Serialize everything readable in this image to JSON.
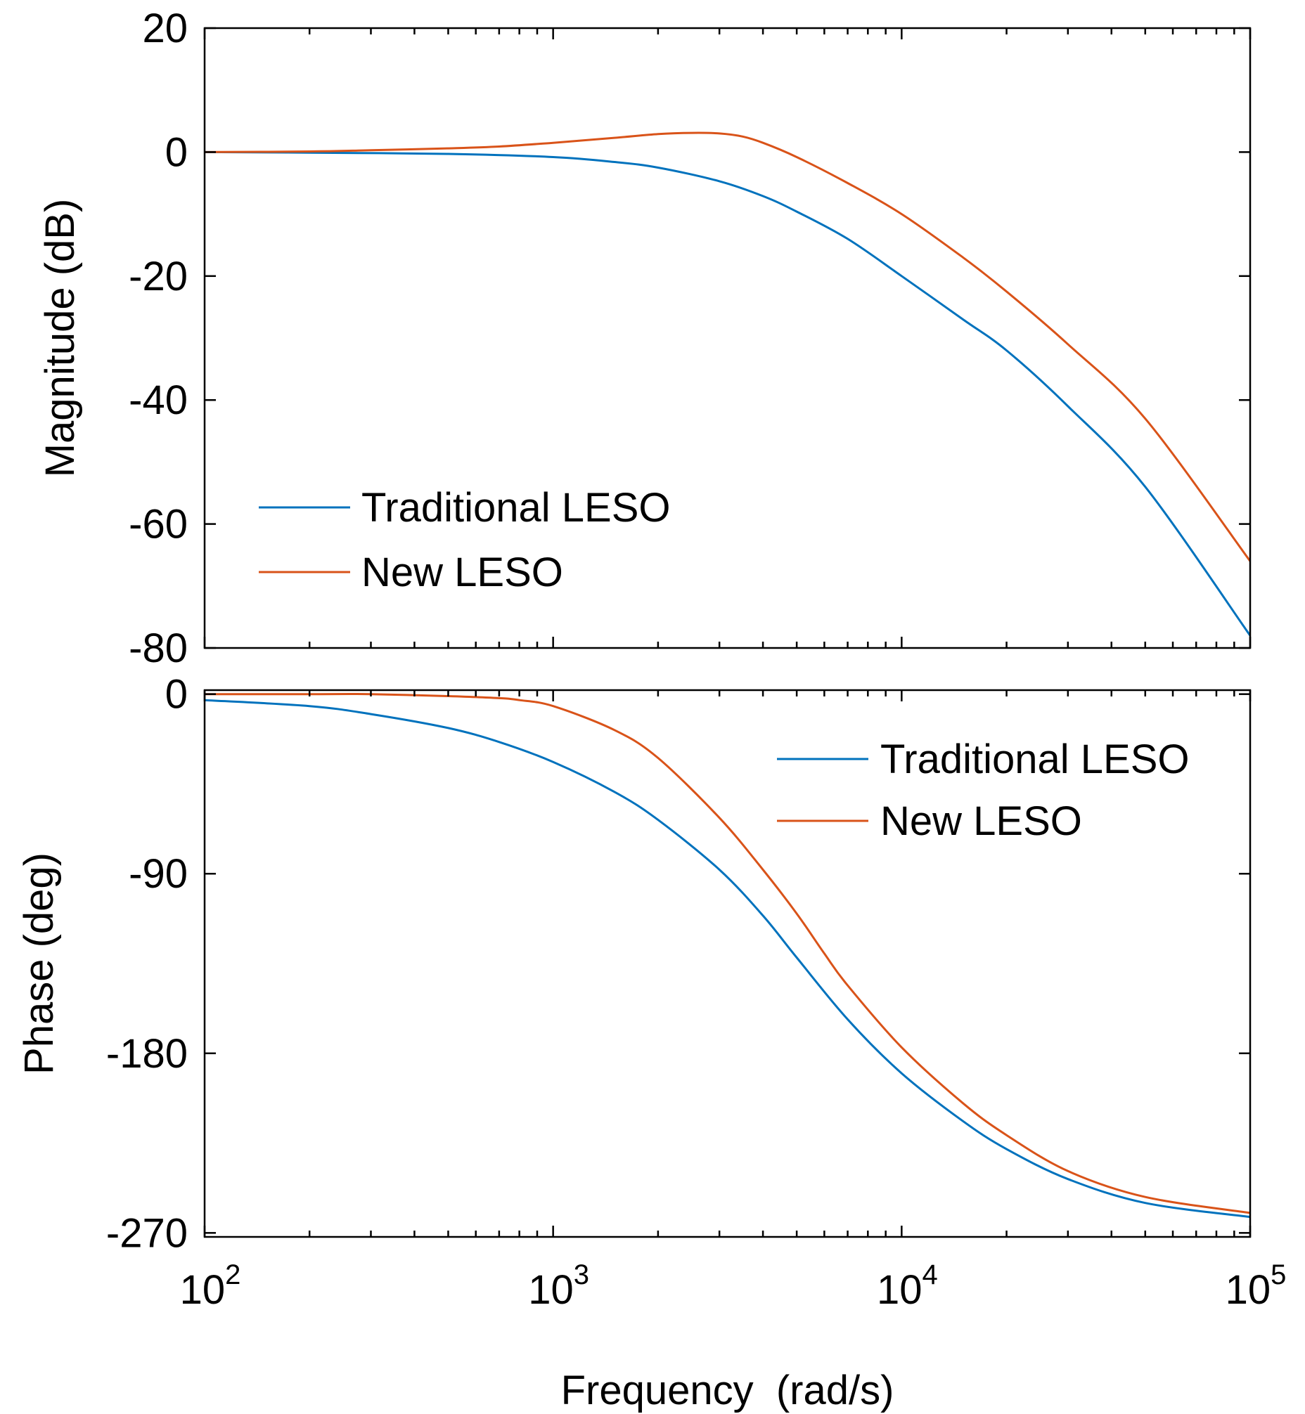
{
  "chart_data": [
    {
      "type": "line",
      "panel": "magnitude",
      "title": "",
      "xlabel": "",
      "ylabel": "Magnitude (dB)",
      "xscale": "log",
      "xlim": [
        100,
        100000
      ],
      "ylim": [
        -80,
        20
      ],
      "yticks": [
        20,
        0,
        -20,
        -40,
        -60,
        -80
      ],
      "ytick_labels": [
        "20",
        "0",
        "-20",
        "-40",
        "-60",
        "-80"
      ],
      "legend_position": "lower-left",
      "series": [
        {
          "name": "Traditional LESO",
          "color": "#0072BD",
          "x": [
            100,
            200,
            500,
            1000,
            1500,
            2000,
            3000,
            4000,
            5000,
            7000,
            10000,
            15000,
            20000,
            30000,
            50000,
            100000
          ],
          "y": [
            0,
            -0.1,
            -0.3,
            -0.8,
            -1.6,
            -2.5,
            -4.7,
            -7.1,
            -9.6,
            -14,
            -20,
            -27,
            -32,
            -41,
            -54,
            -78
          ]
        },
        {
          "name": "New LESO",
          "color": "#D95319",
          "x": [
            100,
            200,
            300,
            500,
            700,
            1000,
            1500,
            2000,
            2500,
            3000,
            3500,
            4000,
            5000,
            7000,
            10000,
            15000,
            20000,
            30000,
            50000,
            100000
          ],
          "y": [
            0,
            0.1,
            0.3,
            0.6,
            0.9,
            1.5,
            2.3,
            2.9,
            3.1,
            3.0,
            2.5,
            1.5,
            -0.8,
            -5,
            -10,
            -17,
            -22.5,
            -31,
            -43,
            -66
          ]
        }
      ]
    },
    {
      "type": "line",
      "panel": "phase",
      "title": "",
      "xlabel": "Frequency  (rad/s)",
      "ylabel": "Phase (deg)",
      "xscale": "log",
      "xlim": [
        100,
        100000
      ],
      "ylim": [
        -272,
        2
      ],
      "yticks": [
        0,
        -90,
        -180,
        -270
      ],
      "ytick_labels": [
        "0",
        "-90",
        "-180",
        "-270"
      ],
      "xtick_labels": [
        {
          "base": "10",
          "exp": "2",
          "value": 100
        },
        {
          "base": "10",
          "exp": "3",
          "value": 1000
        },
        {
          "base": "10",
          "exp": "4",
          "value": 10000
        },
        {
          "base": "10",
          "exp": "5",
          "value": 100000
        }
      ],
      "legend_position": "upper-right",
      "series": [
        {
          "name": "Traditional LESO",
          "color": "#0072BD",
          "x": [
            100,
            200,
            300,
            500,
            700,
            1000,
            1500,
            2000,
            3000,
            4000,
            5000,
            7000,
            10000,
            15000,
            20000,
            30000,
            50000,
            100000
          ],
          "y": [
            -3,
            -6,
            -10,
            -17,
            -24,
            -34,
            -49,
            -63,
            -88,
            -111,
            -132,
            -163,
            -190,
            -214,
            -228,
            -243,
            -255,
            -262
          ]
        },
        {
          "name": "New LESO",
          "color": "#D95319",
          "x": [
            100,
            200,
            300,
            500,
            700,
            800,
            1000,
            1500,
            2000,
            3000,
            4000,
            5000,
            6000,
            7000,
            10000,
            15000,
            20000,
            30000,
            50000,
            100000
          ],
          "y": [
            0,
            0,
            0,
            -1,
            -2,
            -3,
            -6,
            -18,
            -32,
            -62,
            -88,
            -110,
            -130,
            -146,
            -177,
            -205,
            -221,
            -239,
            -252,
            -260
          ]
        }
      ]
    }
  ]
}
